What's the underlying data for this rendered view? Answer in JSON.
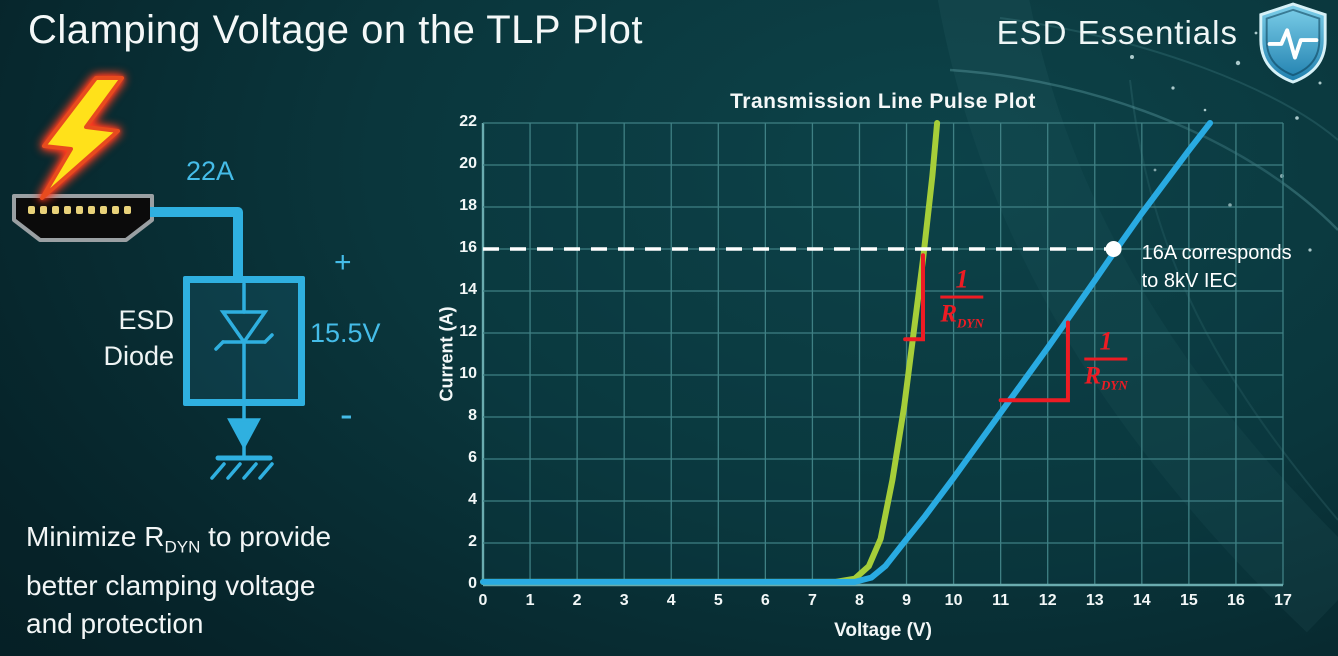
{
  "slide": {
    "title": "Clamping Voltage on the TLP Plot",
    "brand": "ESD Essentials"
  },
  "diagram": {
    "surge_current": "22A",
    "device_line1": "ESD",
    "device_line2": "Diode",
    "plus": "+",
    "clamp_voltage": "15.5V",
    "minus": "-"
  },
  "footer": {
    "pre": "Minimize R",
    "sub": "DYN",
    "post": " to provide",
    "line2": "better clamping voltage",
    "line3": "and protection"
  },
  "chart_data": {
    "type": "line",
    "title": "Transmission Line Pulse Plot",
    "xlabel": "Voltage (V)",
    "ylabel": "Current (A)",
    "xlim": [
      0,
      17
    ],
    "ylim": [
      0,
      22
    ],
    "x_ticks": [
      0,
      1,
      2,
      3,
      4,
      5,
      6,
      7,
      8,
      9,
      10,
      11,
      12,
      13,
      14,
      15,
      16,
      17
    ],
    "y_ticks": [
      0,
      2,
      4,
      6,
      8,
      10,
      12,
      14,
      16,
      18,
      20,
      22
    ],
    "grid": true,
    "legend": "none",
    "colors": {
      "grid": "#3f8084",
      "axis": "#6aacaf",
      "green": "#a6ce39",
      "blue": "#29abe2",
      "red": "#ed1c24",
      "white": "#ffffff",
      "accent_cyan": "#2fb0e0"
    },
    "series": [
      {
        "name": "green-curve-low-rdyn",
        "color": "#a6ce39",
        "points": [
          [
            0,
            0.15
          ],
          [
            7.5,
            0.15
          ],
          [
            7.9,
            0.3
          ],
          [
            8.2,
            0.9
          ],
          [
            8.45,
            2.2
          ],
          [
            8.7,
            5.0
          ],
          [
            8.95,
            8.5
          ],
          [
            9.15,
            12.0
          ],
          [
            9.35,
            15.5
          ],
          [
            9.55,
            19.5
          ],
          [
            9.65,
            22
          ]
        ]
      },
      {
        "name": "blue-curve-high-rdyn",
        "color": "#29abe2",
        "points": [
          [
            0,
            0.15
          ],
          [
            7.9,
            0.15
          ],
          [
            8.25,
            0.35
          ],
          [
            8.55,
            0.9
          ],
          [
            8.9,
            1.9
          ],
          [
            9.4,
            3.3
          ],
          [
            10,
            5.1
          ],
          [
            11,
            8.2
          ],
          [
            12,
            11.3
          ],
          [
            13,
            14.5
          ],
          [
            13.4,
            15.8
          ],
          [
            14,
            17.7
          ],
          [
            15,
            20.7
          ],
          [
            15.45,
            22
          ]
        ]
      }
    ],
    "reference_line": {
      "y": 16,
      "x_start": 0,
      "x_end": 13.4,
      "color": "#ffffff",
      "style": "dashed"
    },
    "marker": {
      "x": 13.4,
      "y": 16,
      "label_line1": "16A corresponds",
      "label_line2": "to 8kV IEC"
    },
    "slope_markers": [
      {
        "name": "green-slope-bracket",
        "points": [
          [
            8.97,
            11.7
          ],
          [
            9.35,
            11.7
          ],
          [
            9.35,
            15.7
          ]
        ]
      },
      {
        "name": "blue-slope-bracket",
        "points": [
          [
            11.0,
            8.8
          ],
          [
            12.43,
            8.8
          ],
          [
            12.43,
            12.5
          ]
        ]
      }
    ],
    "fractions": [
      {
        "x": 10.18,
        "y": 13.67,
        "numerator": "1",
        "denominator": "R",
        "denominator_sub": "DYN"
      },
      {
        "x": 13.24,
        "y": 10.71,
        "numerator": "1",
        "denominator": "R",
        "denominator_sub": "DYN"
      }
    ]
  }
}
